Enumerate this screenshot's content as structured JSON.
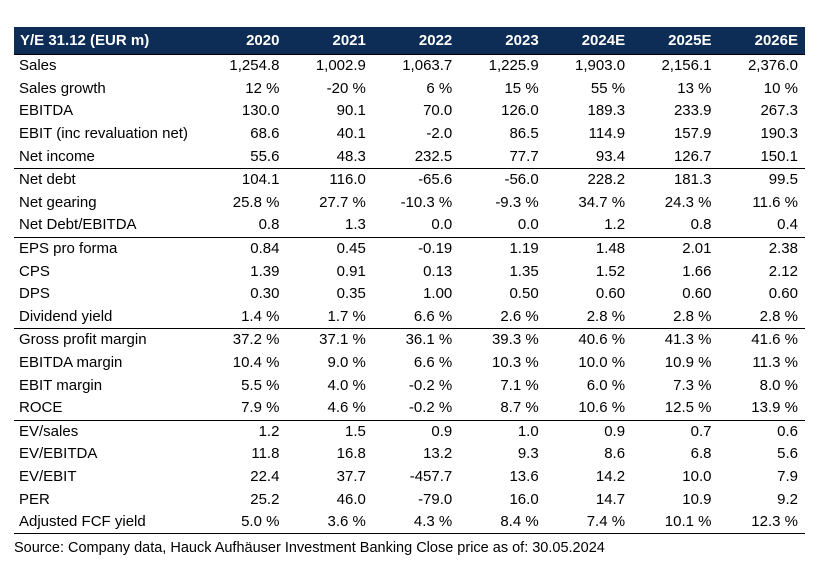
{
  "table": {
    "header": [
      "Y/E 31.12 (EUR m)",
      "2020",
      "2021",
      "2022",
      "2023",
      "2024E",
      "2025E",
      "2026E"
    ],
    "groups": [
      [
        {
          "label": "Sales",
          "values": [
            "1,254.8",
            "1,002.9",
            "1,063.7",
            "1,225.9",
            "1,903.0",
            "2,156.1",
            "2,376.0"
          ]
        },
        {
          "label": "Sales growth",
          "values": [
            "12 %",
            "-20 %",
            "6 %",
            "15 %",
            "55 %",
            "13 %",
            "10 %"
          ]
        },
        {
          "label": "EBITDA",
          "values": [
            "130.0",
            "90.1",
            "70.0",
            "126.0",
            "189.3",
            "233.9",
            "267.3"
          ]
        },
        {
          "label": "EBIT (inc revaluation net)",
          "values": [
            "68.6",
            "40.1",
            "-2.0",
            "86.5",
            "114.9",
            "157.9",
            "190.3"
          ]
        },
        {
          "label": "Net income",
          "values": [
            "55.6",
            "48.3",
            "232.5",
            "77.7",
            "93.4",
            "126.7",
            "150.1"
          ]
        }
      ],
      [
        {
          "label": "Net debt",
          "values": [
            "104.1",
            "116.0",
            "-65.6",
            "-56.0",
            "228.2",
            "181.3",
            "99.5"
          ]
        },
        {
          "label": "Net gearing",
          "values": [
            "25.8 %",
            "27.7 %",
            "-10.3 %",
            "-9.3 %",
            "34.7 %",
            "24.3 %",
            "11.6 %"
          ]
        },
        {
          "label": "Net Debt/EBITDA",
          "values": [
            "0.8",
            "1.3",
            "0.0",
            "0.0",
            "1.2",
            "0.8",
            "0.4"
          ]
        }
      ],
      [
        {
          "label": "EPS pro forma",
          "values": [
            "0.84",
            "0.45",
            "-0.19",
            "1.19",
            "1.48",
            "2.01",
            "2.38"
          ]
        },
        {
          "label": "CPS",
          "values": [
            "1.39",
            "0.91",
            "0.13",
            "1.35",
            "1.52",
            "1.66",
            "2.12"
          ]
        },
        {
          "label": "DPS",
          "values": [
            "0.30",
            "0.35",
            "1.00",
            "0.50",
            "0.60",
            "0.60",
            "0.60"
          ]
        },
        {
          "label": "Dividend yield",
          "values": [
            "1.4 %",
            "1.7 %",
            "6.6 %",
            "2.6 %",
            "2.8 %",
            "2.8 %",
            "2.8 %"
          ]
        }
      ],
      [
        {
          "label": "Gross profit margin",
          "values": [
            "37.2 %",
            "37.1 %",
            "36.1 %",
            "39.3 %",
            "40.6 %",
            "41.3 %",
            "41.6 %"
          ]
        },
        {
          "label": "EBITDA margin",
          "values": [
            "10.4 %",
            "9.0 %",
            "6.6 %",
            "10.3 %",
            "10.0 %",
            "10.9 %",
            "11.3 %"
          ]
        },
        {
          "label": "EBIT margin",
          "values": [
            "5.5 %",
            "4.0 %",
            "-0.2 %",
            "7.1 %",
            "6.0 %",
            "7.3 %",
            "8.0 %"
          ]
        },
        {
          "label": "ROCE",
          "values": [
            "7.9 %",
            "4.6 %",
            "-0.2 %",
            "8.7 %",
            "10.6 %",
            "12.5 %",
            "13.9 %"
          ]
        }
      ],
      [
        {
          "label": "EV/sales",
          "values": [
            "1.2",
            "1.5",
            "0.9",
            "1.0",
            "0.9",
            "0.7",
            "0.6"
          ]
        },
        {
          "label": "EV/EBITDA",
          "values": [
            "11.8",
            "16.8",
            "13.2",
            "9.3",
            "8.6",
            "6.8",
            "5.6"
          ]
        },
        {
          "label": "EV/EBIT",
          "values": [
            "22.4",
            "37.7",
            "-457.7",
            "13.6",
            "14.2",
            "10.0",
            "7.9"
          ]
        },
        {
          "label": "PER",
          "values": [
            "25.2",
            "46.0",
            "-79.0",
            "16.0",
            "14.7",
            "10.9",
            "9.2"
          ]
        },
        {
          "label": "Adjusted FCF yield",
          "values": [
            "5.0 %",
            "3.6 %",
            "4.3 %",
            "8.4 %",
            "7.4 %",
            "10.1 %",
            "12.3 %"
          ]
        }
      ]
    ]
  },
  "source": "Source: Company data, Hauck Aufhäuser Investment Banking Close price as of:  30.05.2024"
}
